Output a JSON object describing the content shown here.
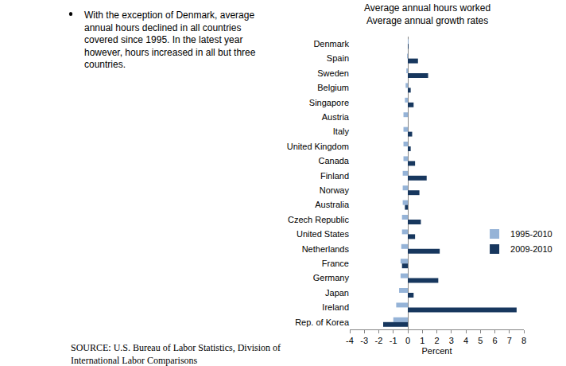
{
  "chart_data": {
    "type": "bar",
    "orientation": "horizontal",
    "title": "Average annual hours worked",
    "subtitle": "Average annual growth rates",
    "x_label": "Percent",
    "annotations": [
      "With the exception of Denmark, average annual hours declined in all countries covered since 1995. In the latest year however, hours increased in all but three countries."
    ],
    "source": "SOURCE: U.S. Bureau of Labor Statistics, Division of International Labor Comparisons",
    "categories": [
      "Denmark",
      "Spain",
      "Sweden",
      "Belgium",
      "Singapore",
      "Austria",
      "Italy",
      "United Kingdom",
      "Canada",
      "Finland",
      "Norway",
      "Australia",
      "Czech Republic",
      "United States",
      "Netherlands",
      "France",
      "Germany",
      "Japan",
      "Ireland",
      "Rep. of Korea"
    ],
    "series": [
      {
        "name": "1995-2010",
        "color": "#95b3d7",
        "values": [
          0.05,
          -0.05,
          -0.1,
          -0.15,
          -0.2,
          -0.3,
          -0.3,
          -0.3,
          -0.3,
          -0.35,
          -0.35,
          -0.35,
          -0.4,
          -0.4,
          -0.45,
          -0.5,
          -0.5,
          -0.6,
          -0.8,
          -1.0
        ]
      },
      {
        "name": "2009-2010",
        "color": "#17375e",
        "values": [
          0.05,
          0.7,
          1.4,
          0.2,
          0.4,
          0.0,
          0.3,
          0.2,
          0.5,
          1.3,
          0.8,
          -0.2,
          0.9,
          0.5,
          2.2,
          -0.4,
          2.1,
          0.4,
          7.5,
          -1.7
        ]
      }
    ],
    "xlim": [
      -4,
      8
    ],
    "xticks": [
      -4,
      -3,
      -2,
      -1,
      0,
      1,
      2,
      3,
      4,
      5,
      6,
      7,
      8
    ],
    "grid": false,
    "legend": "right"
  }
}
